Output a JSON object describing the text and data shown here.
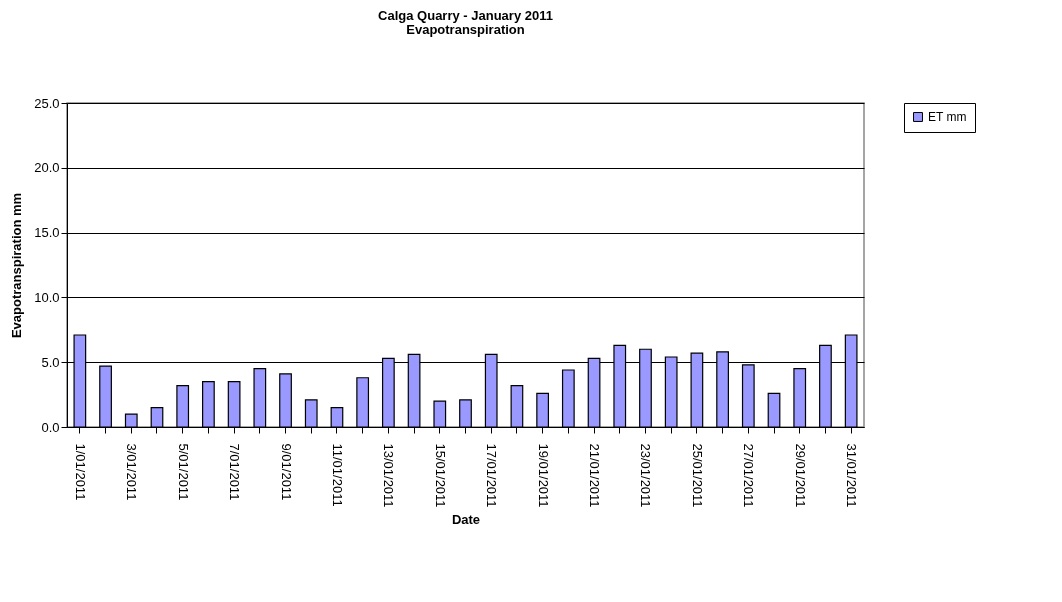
{
  "chart_data": {
    "type": "bar",
    "title": "Calga Quarry - January 2011",
    "subtitle": "Evapotranspiration",
    "xlabel": "Date",
    "ylabel": "Evapotranspiration mm",
    "categories": [
      "1/01/2011",
      null,
      "3/01/2011",
      null,
      "5/01/2011",
      null,
      "7/01/2011",
      null,
      "9/01/2011",
      null,
      "11/01/2011",
      null,
      "13/01/2011",
      null,
      "15/01/2011",
      null,
      "17/01/2011",
      null,
      "19/01/2011",
      null,
      "21/01/2011",
      null,
      "23/01/2011",
      null,
      "25/01/2011",
      null,
      "27/01/2011",
      null,
      "29/01/2011",
      null,
      "31/01/2011"
    ],
    "series": [
      {
        "name": "ET mm",
        "color": "#9999ff",
        "values": [
          7.1,
          4.7,
          1.0,
          1.5,
          3.2,
          3.5,
          3.5,
          4.5,
          4.1,
          2.1,
          1.5,
          3.8,
          5.3,
          5.6,
          2.0,
          2.1,
          5.6,
          3.2,
          2.6,
          4.4,
          5.3,
          6.3,
          6.0,
          5.4,
          5.7,
          5.8,
          4.8,
          2.6,
          4.5,
          6.3,
          7.1
        ]
      }
    ],
    "ylim": [
      0,
      25
    ],
    "yticks": [
      {
        "value": 0,
        "label": "0.0"
      },
      {
        "value": 5,
        "label": "5.0"
      },
      {
        "value": 10,
        "label": "10.0"
      },
      {
        "value": 15,
        "label": "15.0"
      },
      {
        "value": 20,
        "label": "20.0"
      },
      {
        "value": 25,
        "label": "25.0"
      }
    ],
    "grid": "y",
    "legend": "right"
  }
}
